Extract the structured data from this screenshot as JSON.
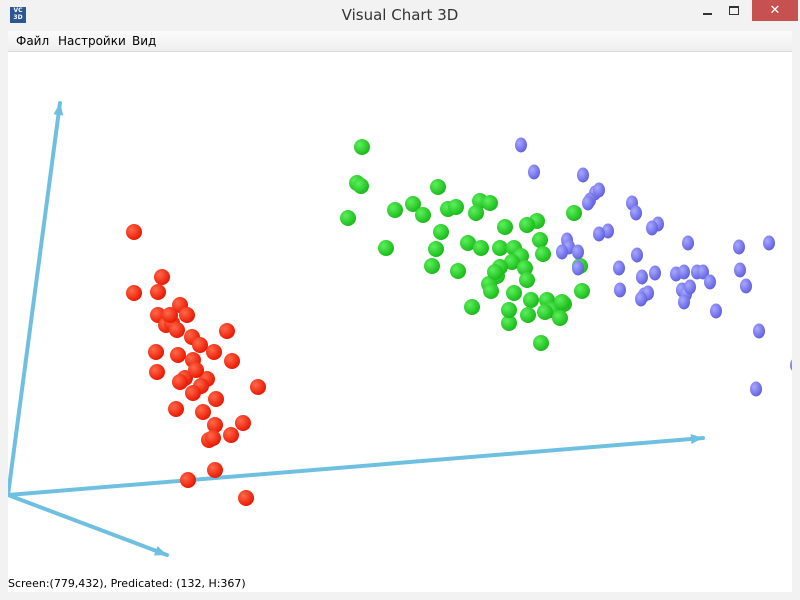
{
  "window": {
    "title": "Visual Chart 3D",
    "icon_text": "VC 3D",
    "icon_name": "app-icon",
    "close_glyph": "✕"
  },
  "menu": {
    "items": [
      "Файл",
      "Настройки",
      "Вид"
    ]
  },
  "status": {
    "text": "Screen:(779,432), Predicated: (132, H:367)"
  },
  "colors": {
    "axis": "#6fc0e0",
    "red_cluster": "#ff1a00",
    "green_cluster": "#1ecc1e",
    "blue_cluster": "#7a7aee",
    "close_button": "#c75050"
  }
}
